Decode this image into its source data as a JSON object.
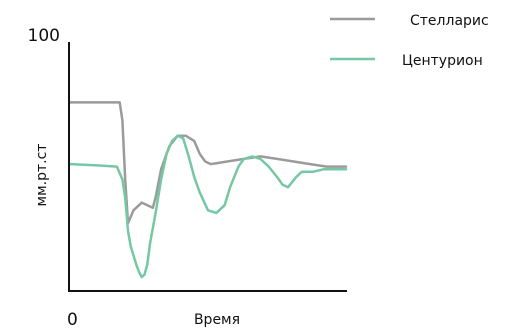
{
  "chart_data": {
    "type": "line",
    "title": "",
    "xlabel": "Время",
    "ylabel": "мм.рт.ст",
    "xlim": [
      0,
      100
    ],
    "ylim": [
      0,
      100
    ],
    "yticks": [
      {
        "value": 100,
        "label": "100"
      }
    ],
    "xticks": [
      {
        "value": 0,
        "label": "0"
      }
    ],
    "grid": false,
    "legend": "top-right",
    "series": [
      {
        "name": "Стелларис",
        "color": "#9b9b9b",
        "points": [
          [
            0,
            73
          ],
          [
            18,
            73
          ],
          [
            19,
            66
          ],
          [
            20,
            43
          ],
          [
            21,
            26
          ],
          [
            23,
            31
          ],
          [
            26,
            34
          ],
          [
            28,
            33
          ],
          [
            30,
            32
          ],
          [
            31,
            36
          ],
          [
            33,
            47
          ],
          [
            36,
            56
          ],
          [
            39,
            60
          ],
          [
            42,
            60
          ],
          [
            45,
            58
          ],
          [
            47,
            53
          ],
          [
            49,
            50
          ],
          [
            51,
            49
          ],
          [
            57,
            50
          ],
          [
            63,
            51
          ],
          [
            69,
            52
          ],
          [
            75,
            51
          ],
          [
            81,
            50
          ],
          [
            87,
            49
          ],
          [
            93,
            48
          ],
          [
            100,
            48
          ]
        ]
      },
      {
        "name": "Центурион",
        "color": "#76c7a4",
        "points": [
          [
            0,
            49
          ],
          [
            10,
            48.5
          ],
          [
            17,
            48
          ],
          [
            19,
            43
          ],
          [
            20,
            36
          ],
          [
            21,
            23
          ],
          [
            22,
            17
          ],
          [
            24,
            10
          ],
          [
            25,
            7
          ],
          [
            26,
            5
          ],
          [
            27,
            6
          ],
          [
            28,
            10
          ],
          [
            29,
            18
          ],
          [
            31,
            30
          ],
          [
            33,
            43
          ],
          [
            35,
            53
          ],
          [
            37,
            58
          ],
          [
            39,
            60
          ],
          [
            41,
            59
          ],
          [
            43,
            52
          ],
          [
            45,
            44
          ],
          [
            47,
            38
          ],
          [
            50,
            31
          ],
          [
            53,
            30
          ],
          [
            56,
            33
          ],
          [
            58,
            40
          ],
          [
            61,
            48
          ],
          [
            63,
            51
          ],
          [
            66,
            52
          ],
          [
            69,
            51
          ],
          [
            72,
            48
          ],
          [
            75,
            44
          ],
          [
            77,
            41
          ],
          [
            79,
            40
          ],
          [
            82,
            44
          ],
          [
            84,
            46
          ],
          [
            88,
            46
          ],
          [
            92,
            47
          ],
          [
            96,
            47
          ],
          [
            100,
            47
          ]
        ]
      }
    ]
  }
}
